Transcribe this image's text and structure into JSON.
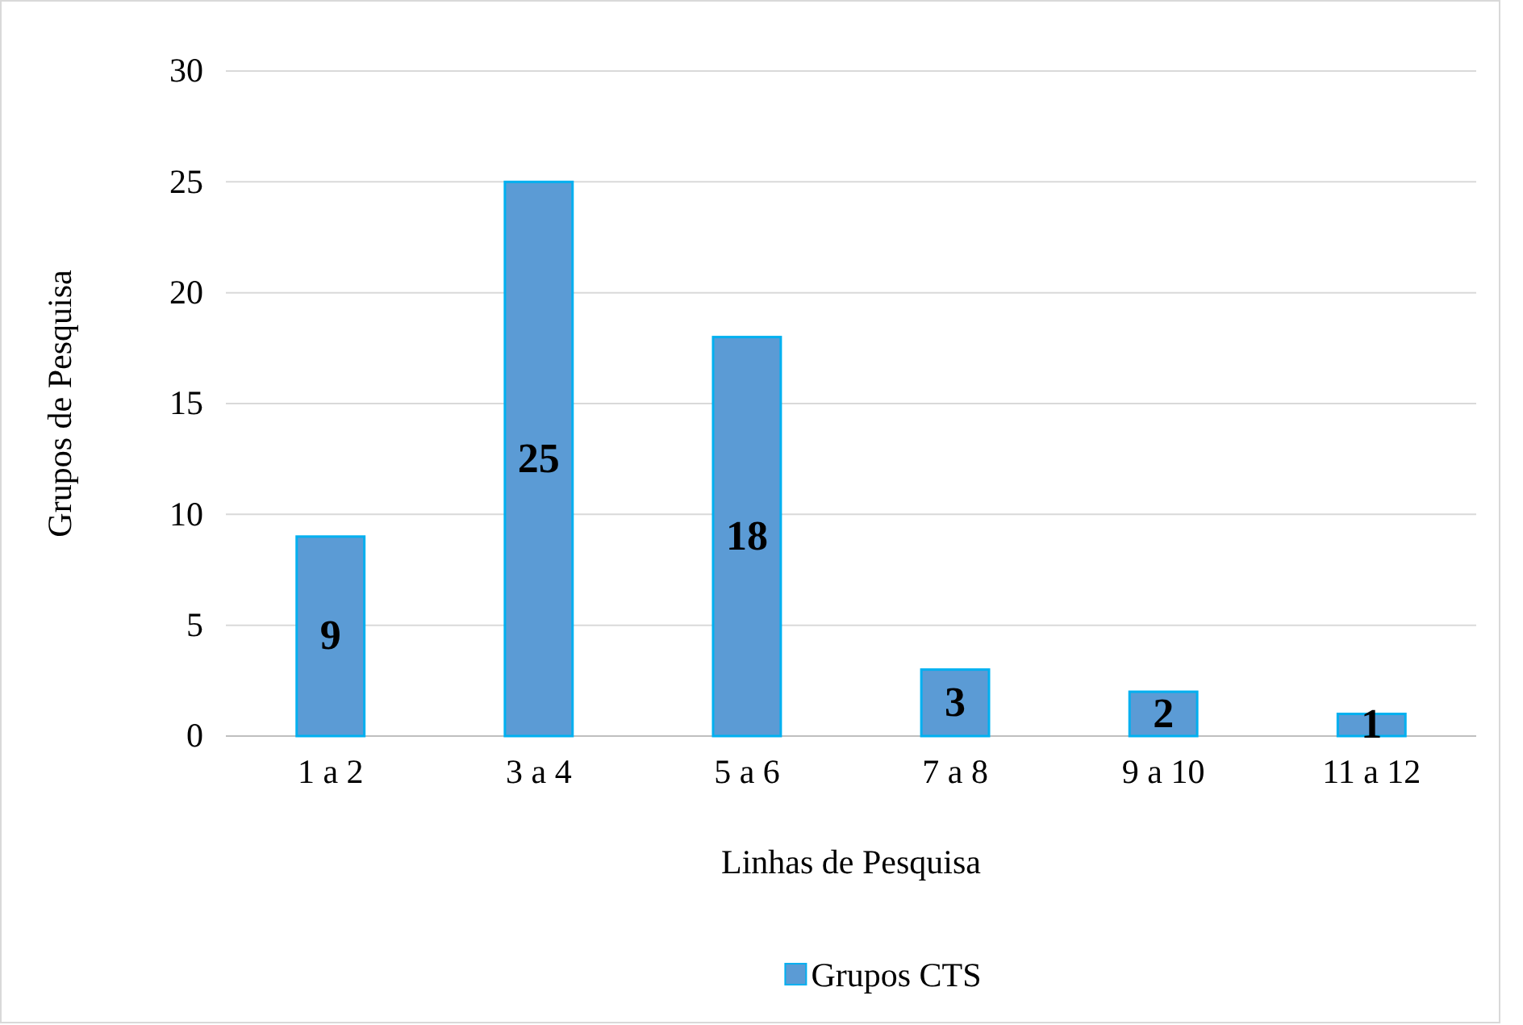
{
  "chart_data": {
    "type": "bar",
    "xlabel": "Linhas de Pesquisa",
    "ylabel": "Grupos de Pesquisa",
    "categories": [
      "1 a 2",
      "3 a 4",
      "5 a 6",
      "7 a 8",
      "9 a 10",
      "11 a 12"
    ],
    "series": [
      {
        "name": "Grupos CTS",
        "color": "#5b9bd5",
        "values": [
          9,
          25,
          18,
          3,
          2,
          1
        ]
      }
    ],
    "ylim": [
      0,
      30
    ],
    "yticks": [
      0,
      5,
      10,
      15,
      20,
      25,
      30
    ],
    "grid": "y",
    "legend": "bottom",
    "data_labels": true
  }
}
